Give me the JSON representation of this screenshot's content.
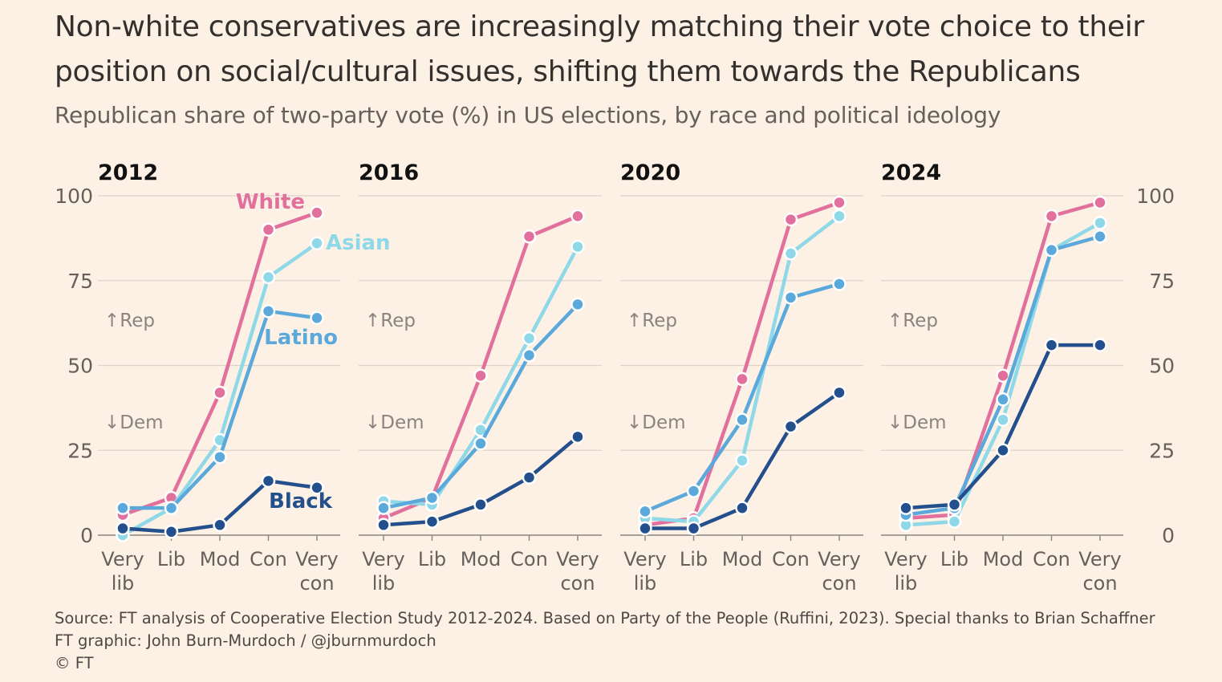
{
  "title": "Non-white conservatives are increasingly matching their vote choice to their position on social/cultural issues, shifting them towards the Republicans",
  "subtitle": "Republican share of two-party vote (%) in US elections, by race and political ideology",
  "source": "Source: FT analysis of Cooperative Election Study 2012-2024. Based on Party of the People (Ruffini, 2023). Special thanks to Brian Schaffner",
  "credit": "FT graphic: John Burn-Murdoch / @jburnmurdoch",
  "copyright": "© FT",
  "annotations": {
    "rep": "Rep",
    "dem": "Dem",
    "rep_arrow": "↑",
    "dem_arrow": "↓"
  },
  "colors": {
    "White": "#e2709c",
    "Asian": "#8fd8e8",
    "Latino": "#5ba9db",
    "Black": "#234f8c",
    "grid": "#ddd3ca",
    "axis": "#66605c",
    "text": "#33302e"
  },
  "chart_data": [
    {
      "type": "line",
      "title": "2012",
      "categories": [
        "Very lib",
        "Lib",
        "Mod",
        "Con",
        "Very con"
      ],
      "ylim": [
        0,
        100
      ],
      "yticks": [
        0,
        25,
        50,
        75,
        100
      ],
      "series": [
        {
          "name": "White",
          "values": [
            6,
            11,
            42,
            90,
            95
          ]
        },
        {
          "name": "Asian",
          "values": [
            0,
            8,
            28,
            76,
            86
          ]
        },
        {
          "name": "Latino",
          "values": [
            8,
            8,
            23,
            66,
            64
          ]
        },
        {
          "name": "Black",
          "values": [
            2,
            1,
            3,
            16,
            14
          ]
        }
      ]
    },
    {
      "type": "line",
      "title": "2016",
      "categories": [
        "Very lib",
        "Lib",
        "Mod",
        "Con",
        "Very con"
      ],
      "ylim": [
        0,
        100
      ],
      "yticks": [
        0,
        25,
        50,
        75,
        100
      ],
      "series": [
        {
          "name": "White",
          "values": [
            5,
            11,
            47,
            88,
            94
          ]
        },
        {
          "name": "Asian",
          "values": [
            10,
            9,
            31,
            58,
            85
          ]
        },
        {
          "name": "Latino",
          "values": [
            8,
            11,
            27,
            53,
            68
          ]
        },
        {
          "name": "Black",
          "values": [
            3,
            4,
            9,
            17,
            29
          ]
        }
      ]
    },
    {
      "type": "line",
      "title": "2020",
      "categories": [
        "Very lib",
        "Lib",
        "Mod",
        "Con",
        "Very con"
      ],
      "ylim": [
        0,
        100
      ],
      "yticks": [
        0,
        25,
        50,
        75,
        100
      ],
      "series": [
        {
          "name": "White",
          "values": [
            3,
            5,
            46,
            93,
            98
          ]
        },
        {
          "name": "Asian",
          "values": [
            5,
            4,
            22,
            83,
            94
          ]
        },
        {
          "name": "Latino",
          "values": [
            7,
            13,
            34,
            70,
            74
          ]
        },
        {
          "name": "Black",
          "values": [
            2,
            2,
            8,
            32,
            42
          ]
        }
      ]
    },
    {
      "type": "line",
      "title": "2024",
      "categories": [
        "Very lib",
        "Lib",
        "Mod",
        "Con",
        "Very con"
      ],
      "ylim": [
        0,
        100
      ],
      "yticks": [
        0,
        25,
        50,
        75,
        100
      ],
      "series": [
        {
          "name": "White",
          "values": [
            5,
            6,
            47,
            94,
            98
          ]
        },
        {
          "name": "Asian",
          "values": [
            3,
            4,
            34,
            84,
            92
          ]
        },
        {
          "name": "Latino",
          "values": [
            6,
            8,
            40,
            84,
            88
          ]
        },
        {
          "name": "Black",
          "values": [
            8,
            9,
            25,
            56,
            56
          ]
        }
      ]
    }
  ]
}
